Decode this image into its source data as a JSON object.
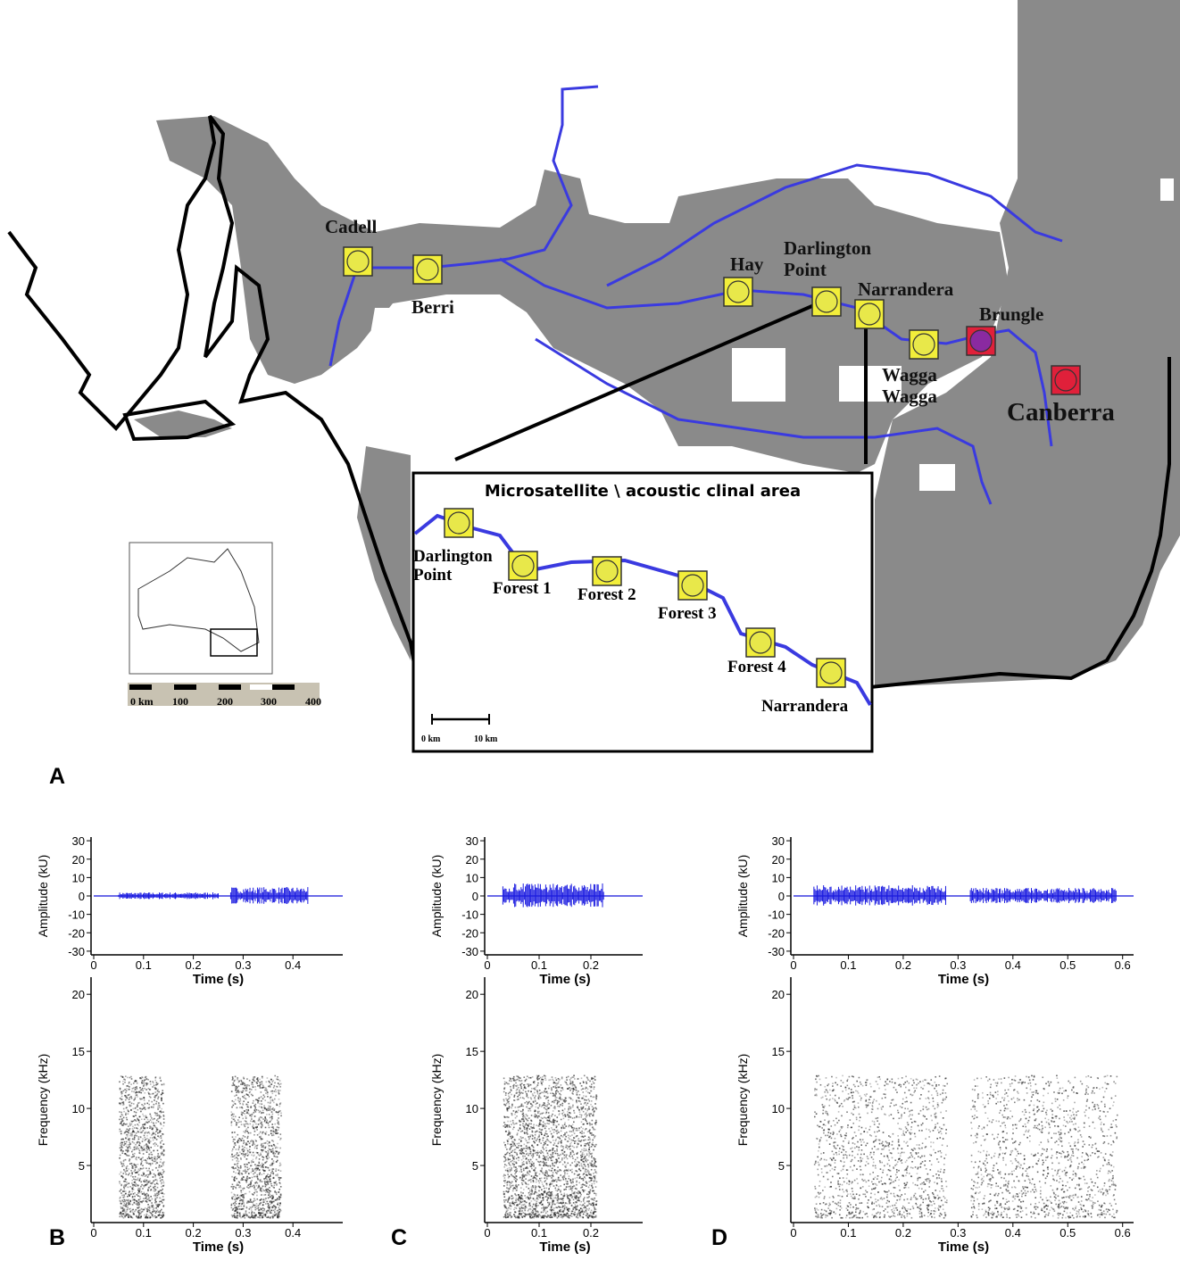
{
  "map": {
    "sites": [
      "Cadell",
      "Berri",
      "Hay",
      "Darlington\nPoint",
      "Narrandera",
      "Wagga\nWagga",
      "Brungle",
      "Canberra"
    ],
    "inset": {
      "title": "Microsatellite \\ acoustic clinal area",
      "sites": [
        "Darlington\nPoint",
        "Forest 1",
        "Forest 2",
        "Forest 3",
        "Forest 4",
        "Narrandera"
      ],
      "scale": [
        "0 km",
        "10 km"
      ]
    },
    "scale_bar": [
      "0 km",
      "100",
      "200",
      "300",
      "400"
    ]
  },
  "panel_labels": [
    "A",
    "B",
    "C",
    "D"
  ],
  "plots": [
    {
      "waveform": {
        "ylabel": "Amplitude (kU)",
        "xlabel": "Time (s)",
        "xlim": [
          0,
          0.5
        ],
        "xticks": [
          0,
          0.1,
          0.2,
          0.3,
          0.4
        ],
        "ylim": [
          -32,
          32
        ],
        "yticks": [
          30,
          20,
          10,
          0,
          -10,
          -20,
          -30
        ]
      },
      "spectrogram": {
        "ylabel": "Frequency (kHz)",
        "xlabel": "Time (s)",
        "xlim": [
          0,
          0.5
        ],
        "xticks": [
          0,
          0.1,
          0.2,
          0.3,
          0.4
        ],
        "ylim": [
          0,
          21.5
        ],
        "yticks": [
          5,
          10,
          15,
          20
        ]
      }
    },
    {
      "waveform": {
        "ylabel": "Amplitude (kU)",
        "xlabel": "Time (s)",
        "xlim": [
          0,
          0.3
        ],
        "xticks": [
          0,
          0.1,
          0.2
        ],
        "ylim": [
          -32,
          32
        ],
        "yticks": [
          30,
          20,
          10,
          0,
          -10,
          -20,
          -30
        ]
      },
      "spectrogram": {
        "ylabel": "Frequency (kHz)",
        "xlabel": "Time (s)",
        "xlim": [
          0,
          0.3
        ],
        "xticks": [
          0,
          0.1,
          0.2
        ],
        "ylim": [
          0,
          21.5
        ],
        "yticks": [
          5,
          10,
          15,
          20
        ]
      }
    },
    {
      "waveform": {
        "ylabel": "Amplitude (kU)",
        "xlabel": "Time (s)",
        "xlim": [
          0,
          0.62
        ],
        "xticks": [
          0,
          0.1,
          0.2,
          0.3,
          0.4,
          0.5,
          0.6
        ],
        "ylim": [
          -32,
          32
        ],
        "yticks": [
          30,
          20,
          10,
          0,
          -10,
          -20,
          -30
        ]
      },
      "spectrogram": {
        "ylabel": "Frequency (kHz)",
        "xlabel": "Time (s)",
        "xlim": [
          0,
          0.62
        ],
        "xticks": [
          0,
          0.1,
          0.2,
          0.3,
          0.4,
          0.5,
          0.6
        ],
        "ylim": [
          0,
          21.5
        ],
        "yticks": [
          5,
          10,
          15,
          20
        ]
      }
    }
  ]
}
